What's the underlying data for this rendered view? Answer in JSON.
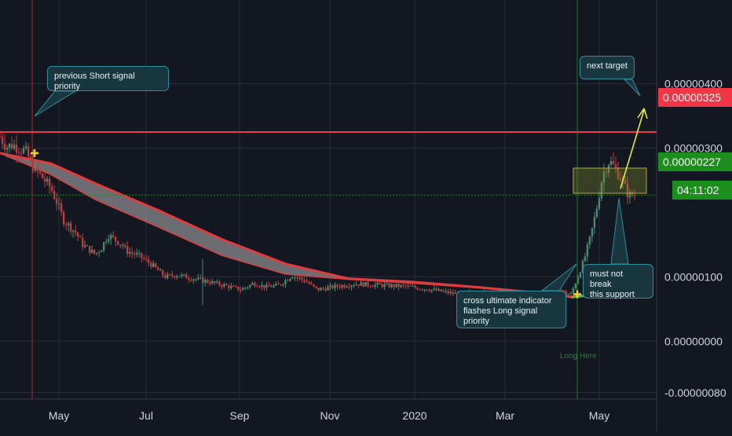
{
  "chart_data": {
    "type": "candlestick",
    "title": "",
    "x_tick_labels": [
      "May",
      "Jul",
      "Sep",
      "Nov",
      "2020",
      "Mar",
      "May"
    ],
    "y_tick_labels": [
      "0.00000400",
      "0.00000300",
      "0.00000100",
      "0.00000000",
      "-0.00000080"
    ],
    "y_ticks": [
      4e-06,
      3e-06,
      1e-06,
      0.0,
      -8e-07
    ],
    "ylim": [
      -9e-07,
      5.3e-06
    ],
    "horizontal_lines": [
      {
        "label": "0.00000325",
        "value": 3.25e-06,
        "color": "#f23645"
      },
      {
        "label": "0.00000227",
        "value": 2.27e-06,
        "color": "#1b8f1b"
      }
    ],
    "current_price_label": "0.00000227",
    "countdown_label": "04:11:02",
    "ribbon": {
      "upper": [
        [
          0.0,
          2.92e-06
        ],
        [
          0.08,
          2.76e-06
        ],
        [
          0.15,
          2.45e-06
        ],
        [
          0.25,
          2.03e-06
        ],
        [
          0.35,
          1.58e-06
        ],
        [
          0.45,
          1.2e-06
        ],
        [
          0.55,
          9.7e-07
        ],
        [
          0.65,
          9.2e-07
        ],
        [
          0.75,
          8.4e-07
        ],
        [
          0.85,
          7.5e-07
        ],
        [
          0.9,
          6.9e-07
        ],
        [
          0.95,
          7.2e-07
        ],
        [
          0.99,
          8.3e-07
        ]
      ],
      "lower": [
        [
          0.0,
          2.92e-06
        ],
        [
          0.08,
          2.59e-06
        ],
        [
          0.15,
          2.2e-06
        ],
        [
          0.25,
          1.77e-06
        ],
        [
          0.35,
          1.33e-06
        ],
        [
          0.45,
          1.04e-06
        ],
        [
          0.55,
          9.6e-07
        ],
        [
          0.65,
          9e-07
        ],
        [
          0.75,
          8.3e-07
        ],
        [
          0.85,
          7.4e-07
        ],
        [
          0.9,
          6.8e-07
        ],
        [
          0.95,
          7.4e-07
        ],
        [
          0.99,
          8.6e-07
        ]
      ]
    },
    "price_path": [
      [
        0.0,
        3.18e-06
      ],
      [
        0.01,
        3.02e-06
      ],
      [
        0.02,
        3.05e-06
      ],
      [
        0.04,
        2.95e-06
      ],
      [
        0.05,
        2.75e-06
      ],
      [
        0.06,
        2.62e-06
      ],
      [
        0.08,
        2.38e-06
      ],
      [
        0.09,
        2.15e-06
      ],
      [
        0.1,
        1.88e-06
      ],
      [
        0.12,
        1.68e-06
      ],
      [
        0.13,
        1.5e-06
      ],
      [
        0.15,
        1.35e-06
      ],
      [
        0.16,
        1.45e-06
      ],
      [
        0.17,
        1.65e-06
      ],
      [
        0.19,
        1.52e-06
      ],
      [
        0.2,
        1.4e-06
      ],
      [
        0.22,
        1.32e-06
      ],
      [
        0.24,
        1.18e-06
      ],
      [
        0.26,
        1e-06
      ],
      [
        0.28,
        1.03e-06
      ],
      [
        0.3,
        9.8e-07
      ],
      [
        0.33,
        9.2e-07
      ],
      [
        0.36,
        8.5e-07
      ],
      [
        0.38,
        8e-07
      ],
      [
        0.4,
        9e-07
      ],
      [
        0.42,
        8.4e-07
      ],
      [
        0.44,
        8.7e-07
      ],
      [
        0.46,
        1.02e-06
      ],
      [
        0.48,
        9.4e-07
      ],
      [
        0.5,
        8e-07
      ],
      [
        0.53,
        8.5e-07
      ],
      [
        0.56,
        8.9e-07
      ],
      [
        0.6,
        8.7e-07
      ],
      [
        0.64,
        8.5e-07
      ],
      [
        0.68,
        8e-07
      ],
      [
        0.72,
        7.3e-07
      ],
      [
        0.76,
        7.5e-07
      ],
      [
        0.8,
        7e-07
      ],
      [
        0.84,
        6.6e-07
      ],
      [
        0.86,
        7.4e-07
      ],
      [
        0.88,
        8.4e-07
      ],
      [
        0.89,
        7.4e-07
      ],
      [
        0.9,
        7.3e-07
      ],
      [
        0.92,
        1.25e-06
      ],
      [
        0.93,
        1.6e-06
      ],
      [
        0.94,
        2.05e-06
      ],
      [
        0.95,
        2.6e-06
      ],
      [
        0.96,
        2.8e-06
      ],
      [
        0.97,
        2.68e-06
      ],
      [
        0.98,
        2.5e-06
      ],
      [
        0.99,
        2.27e-06
      ]
    ],
    "annotations": [
      {
        "text": "previous Short signal priority"
      },
      {
        "text": "next target"
      },
      {
        "text": "cross ultimate indicator flashes Long signal priority"
      },
      {
        "text": "must not break this support"
      },
      {
        "text": "Long Here"
      }
    ],
    "markers": [
      {
        "shape": "cross",
        "color": "#f3d32a",
        "value": 2.92e-06
      },
      {
        "shape": "cross",
        "color": "#f3d32a",
        "value": 7.3e-07
      }
    ]
  },
  "annotations": {
    "short_signal": "previous Short signal priority",
    "next_target": "next target",
    "long_signal_line1": "cross ultimate indicator",
    "long_signal_line2": "flashes Long signal priority",
    "support_line1": "must not break",
    "support_line2": "this support",
    "long_here": "Long Here"
  },
  "colors": {
    "background": "#131722",
    "grid": "#2a2e39",
    "candle_up": "#4a8c6d",
    "candle_down": "#c23b3b",
    "ribbon_upper": "#e23c3c",
    "ribbon_fill": "#8b8b8f",
    "green_line": "#59b94a",
    "resistance": "#f23645",
    "support_box": "#7a8a2a",
    "target_arrow": "#f3f33a"
  }
}
